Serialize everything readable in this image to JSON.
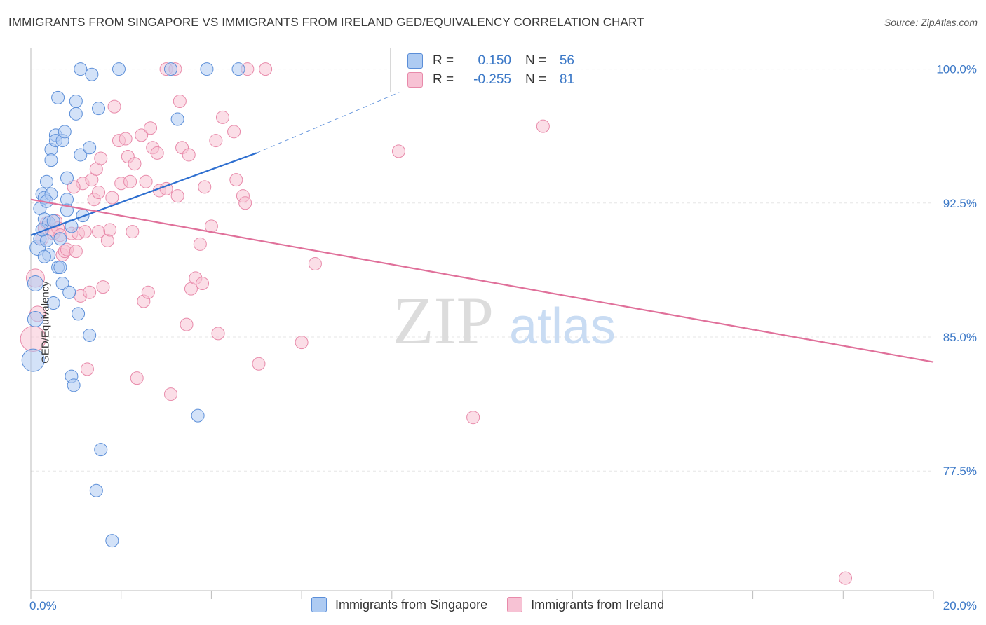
{
  "header": {
    "title": "IMMIGRANTS FROM SINGAPORE VS IMMIGRANTS FROM IRELAND GED/EQUIVALENCY CORRELATION CHART",
    "source": "Source: ZipAtlas.com"
  },
  "watermark": {
    "zip": "ZIP",
    "atlas": "atlas"
  },
  "legend": {
    "r_label": "R =",
    "n_label": "N =",
    "singapore": {
      "r": "0.150",
      "n": "56"
    },
    "ireland": {
      "r": "-0.255",
      "n": "81"
    }
  },
  "bottom_legend": {
    "singapore": "Immigrants from Singapore",
    "ireland": "Immigrants from Ireland"
  },
  "colors": {
    "singapore_fill": "#aecbf2",
    "singapore_stroke": "#5b8ed8",
    "singapore_line": "#2e6fd0",
    "ireland_fill": "#f7c2d4",
    "ireland_stroke": "#e88aaa",
    "ireland_line": "#e0709a",
    "tick_text": "#3b78c7",
    "grid": "#e5e5e5"
  },
  "chart_data": {
    "type": "scatter",
    "title": "IMMIGRANTS FROM SINGAPORE VS IMMIGRANTS FROM IRELAND GED/EQUIVALENCY CORRELATION CHART",
    "xlabel": "",
    "ylabel": "GED/Equivalency",
    "xlim": [
      0,
      20
    ],
    "ylim": [
      70.8,
      101.2
    ],
    "x_tick_labels": [
      {
        "value": 0,
        "label": "0.0%"
      },
      {
        "value": 20,
        "label": "20.0%"
      }
    ],
    "y_tick_labels": [
      {
        "value": 100,
        "label": "100.0%"
      },
      {
        "value": 92.5,
        "label": "92.5%"
      },
      {
        "value": 85,
        "label": "85.0%"
      },
      {
        "value": 77.5,
        "label": "77.5%"
      }
    ],
    "series": [
      {
        "name": "Immigrants from Singapore",
        "r": 0.15,
        "n": 56,
        "trend": {
          "x0": 0.0,
          "y0": 90.7,
          "x1": 5.0,
          "y1": 95.3,
          "dashed_to_x": 9.0,
          "dashed_to_y": 99.6
        },
        "points": [
          [
            0.05,
            83.7,
            16
          ],
          [
            0.1,
            86.0,
            11
          ],
          [
            0.1,
            88.0,
            11
          ],
          [
            0.15,
            90.0,
            11
          ],
          [
            0.2,
            90.5,
            9
          ],
          [
            0.2,
            92.2,
            9
          ],
          [
            0.25,
            93.0,
            9
          ],
          [
            0.3,
            92.8,
            9
          ],
          [
            0.3,
            91.6,
            9
          ],
          [
            0.35,
            90.4,
            9
          ],
          [
            0.35,
            93.7,
            9
          ],
          [
            0.4,
            91.4,
            9
          ],
          [
            0.45,
            93.0,
            9
          ],
          [
            0.4,
            89.6,
            9
          ],
          [
            0.45,
            95.5,
            9
          ],
          [
            0.45,
            94.9,
            9
          ],
          [
            0.5,
            86.9,
            9
          ],
          [
            0.55,
            96.3,
            9
          ],
          [
            0.55,
            96.0,
            9
          ],
          [
            0.6,
            98.4,
            9
          ],
          [
            0.6,
            88.9,
            9
          ],
          [
            0.65,
            90.5,
            9
          ],
          [
            0.65,
            88.9,
            9
          ],
          [
            0.7,
            88.0,
            9
          ],
          [
            0.7,
            96.0,
            9
          ],
          [
            0.75,
            96.5,
            9
          ],
          [
            0.8,
            93.9,
            9
          ],
          [
            0.8,
            92.7,
            9
          ],
          [
            0.8,
            92.1,
            9
          ],
          [
            0.85,
            87.5,
            9
          ],
          [
            0.9,
            91.2,
            9
          ],
          [
            0.9,
            82.8,
            9
          ],
          [
            0.95,
            82.3,
            9
          ],
          [
            1.0,
            97.5,
            9
          ],
          [
            1.0,
            98.2,
            9
          ],
          [
            1.05,
            86.3,
            9
          ],
          [
            1.1,
            95.2,
            9
          ],
          [
            1.15,
            91.8,
            9
          ],
          [
            1.1,
            100.0,
            9
          ],
          [
            1.3,
            95.6,
            9
          ],
          [
            1.3,
            85.1,
            9
          ],
          [
            1.35,
            99.7,
            9
          ],
          [
            1.5,
            97.8,
            9
          ],
          [
            1.55,
            78.7,
            9
          ],
          [
            1.45,
            76.4,
            9
          ],
          [
            1.8,
            73.6,
            9
          ],
          [
            1.95,
            100.0,
            9
          ],
          [
            3.1,
            100.0,
            9
          ],
          [
            3.25,
            97.2,
            9
          ],
          [
            3.7,
            80.6,
            9
          ],
          [
            3.9,
            100.0,
            9
          ],
          [
            4.6,
            100.0,
            9
          ],
          [
            0.25,
            91.0,
            9
          ],
          [
            0.3,
            89.5,
            9
          ],
          [
            0.5,
            91.5,
            9
          ],
          [
            0.35,
            92.6,
            9
          ]
        ]
      },
      {
        "name": "Immigrants from Ireland",
        "r": -0.255,
        "n": 81,
        "trend": {
          "x0": 0.0,
          "y0": 92.7,
          "x1": 20.0,
          "y1": 83.6
        },
        "points": [
          [
            0.05,
            84.9,
            18
          ],
          [
            0.1,
            88.3,
            13
          ],
          [
            0.15,
            86.3,
            11
          ],
          [
            0.25,
            90.5,
            9
          ],
          [
            0.3,
            91.1,
            9
          ],
          [
            0.35,
            91.4,
            9
          ],
          [
            0.45,
            91.0,
            9
          ],
          [
            0.5,
            90.8,
            9
          ],
          [
            0.55,
            91.5,
            9
          ],
          [
            0.6,
            91.1,
            9
          ],
          [
            0.65,
            90.7,
            9
          ],
          [
            0.7,
            89.6,
            9
          ],
          [
            0.75,
            89.8,
            9
          ],
          [
            0.8,
            89.9,
            9
          ],
          [
            0.9,
            90.8,
            9
          ],
          [
            1.0,
            89.8,
            9
          ],
          [
            1.05,
            90.8,
            9
          ],
          [
            1.1,
            87.3,
            9
          ],
          [
            1.15,
            93.6,
            9
          ],
          [
            1.2,
            90.9,
            9
          ],
          [
            1.25,
            83.2,
            9
          ],
          [
            1.3,
            87.5,
            9
          ],
          [
            1.35,
            93.8,
            9
          ],
          [
            1.4,
            92.7,
            9
          ],
          [
            1.45,
            94.4,
            9
          ],
          [
            1.5,
            93.1,
            9
          ],
          [
            1.55,
            95.0,
            9
          ],
          [
            1.6,
            87.8,
            9
          ],
          [
            1.7,
            90.4,
            9
          ],
          [
            1.75,
            91.0,
            9
          ],
          [
            1.8,
            92.8,
            9
          ],
          [
            1.85,
            97.9,
            9
          ],
          [
            1.95,
            96.0,
            9
          ],
          [
            2.0,
            93.6,
            9
          ],
          [
            2.1,
            96.1,
            9
          ],
          [
            2.15,
            95.1,
            9
          ],
          [
            2.2,
            93.7,
            9
          ],
          [
            2.25,
            90.9,
            9
          ],
          [
            2.3,
            94.7,
            9
          ],
          [
            2.35,
            82.7,
            9
          ],
          [
            2.45,
            96.3,
            9
          ],
          [
            2.5,
            87.0,
            9
          ],
          [
            2.55,
            93.7,
            9
          ],
          [
            2.6,
            87.5,
            9
          ],
          [
            2.65,
            96.7,
            9
          ],
          [
            2.7,
            95.6,
            9
          ],
          [
            2.8,
            95.3,
            9
          ],
          [
            2.85,
            93.2,
            9
          ],
          [
            3.0,
            93.3,
            9
          ],
          [
            3.0,
            100.0,
            9
          ],
          [
            3.1,
            81.8,
            9
          ],
          [
            3.2,
            100.0,
            9
          ],
          [
            3.25,
            92.9,
            9
          ],
          [
            3.3,
            98.2,
            9
          ],
          [
            3.35,
            95.6,
            9
          ],
          [
            3.45,
            85.7,
            9
          ],
          [
            3.5,
            95.2,
            9
          ],
          [
            3.55,
            87.7,
            9
          ],
          [
            3.65,
            88.3,
            9
          ],
          [
            3.75,
            90.2,
            9
          ],
          [
            3.8,
            88.0,
            9
          ],
          [
            3.85,
            93.4,
            9
          ],
          [
            4.0,
            91.2,
            9
          ],
          [
            4.1,
            96.0,
            9
          ],
          [
            4.15,
            85.2,
            9
          ],
          [
            4.25,
            97.3,
            9
          ],
          [
            4.5,
            96.5,
            9
          ],
          [
            4.55,
            93.8,
            9
          ],
          [
            4.7,
            92.9,
            9
          ],
          [
            4.75,
            92.5,
            9
          ],
          [
            4.8,
            100.0,
            9
          ],
          [
            5.05,
            83.5,
            9
          ],
          [
            5.2,
            100.0,
            9
          ],
          [
            6.0,
            84.7,
            9
          ],
          [
            6.3,
            89.1,
            9
          ],
          [
            8.15,
            95.4,
            9
          ],
          [
            9.8,
            80.5,
            9
          ],
          [
            11.35,
            96.8,
            9
          ],
          [
            18.05,
            71.5,
            9
          ],
          [
            1.5,
            90.9,
            9
          ],
          [
            0.95,
            93.4,
            9
          ]
        ]
      }
    ]
  }
}
